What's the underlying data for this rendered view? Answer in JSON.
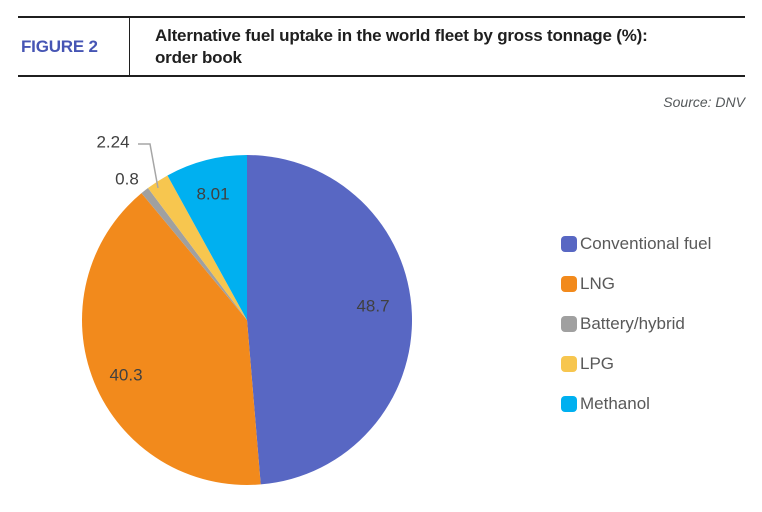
{
  "figure": {
    "tag": "FIGURE 2",
    "title_line1": "Alternative fuel uptake in the world fleet by gross tonnage (%):",
    "title_line2": "order book",
    "source": "Source: DNV"
  },
  "colors": {
    "figure_tag_blue": "#4655B4",
    "rule": "#1f1f1f",
    "source_text": "#54585A",
    "data_label": "#404040",
    "legend_text": "#595959",
    "leader_line": "#A6A6A6"
  },
  "chart_data": {
    "type": "pie",
    "title": "Alternative fuel uptake in the world fleet by gross tonnage (%): order book",
    "source": "DNV",
    "unit": "%",
    "start_angle_deg": 0,
    "direction": "clockwise",
    "legend_position": "right",
    "slices": [
      {
        "label": "Conventional fuel",
        "value": 48.7,
        "data_label": "48.7",
        "color": "#5867C3"
      },
      {
        "label": "LNG",
        "value": 40.3,
        "data_label": "40.3",
        "color": "#F28A1C"
      },
      {
        "label": "Battery/hybrid",
        "value": 0.8,
        "data_label": "0.8",
        "color": "#A0A0A0"
      },
      {
        "label": "LPG",
        "value": 2.24,
        "data_label": "2.24",
        "color": "#F7C64F"
      },
      {
        "label": "Methanol",
        "value": 8.01,
        "data_label": "8.01",
        "color": "#00B0F0"
      }
    ]
  }
}
